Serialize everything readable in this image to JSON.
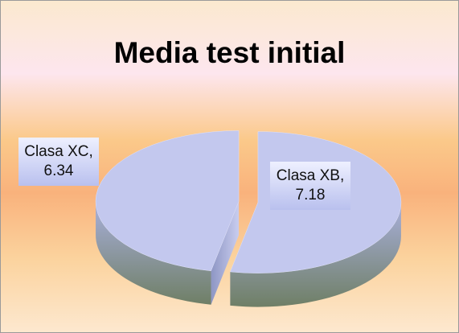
{
  "chart_data": {
    "type": "pie",
    "title": "Media test initial",
    "categories": [
      "Clasa XB",
      "Clasa XC"
    ],
    "values": [
      7.18,
      6.34
    ],
    "value_labels": [
      "Clasa XB, 7.18",
      "Clasa XC, 6.34"
    ],
    "colors": [
      "#c3c8ee",
      "#c3c8ee"
    ],
    "three_d": true,
    "exploded": true
  }
}
